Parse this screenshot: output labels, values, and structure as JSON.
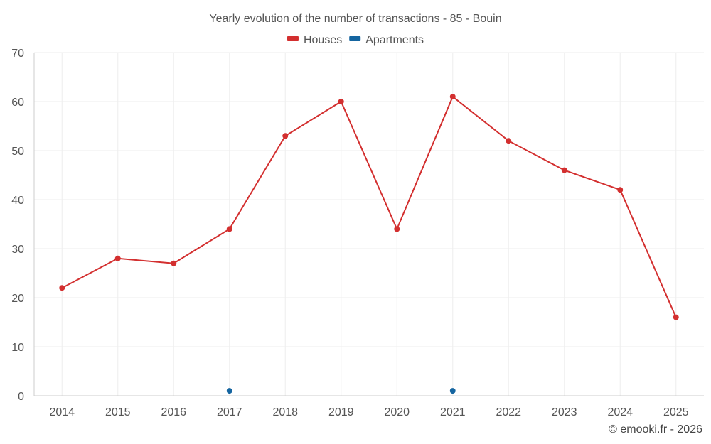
{
  "chart_data": {
    "type": "line",
    "title": "Yearly evolution of the number of transactions - 85 - Bouin",
    "categories": [
      "2014",
      "2015",
      "2016",
      "2017",
      "2018",
      "2019",
      "2020",
      "2021",
      "2022",
      "2023",
      "2024",
      "2025"
    ],
    "ylim": [
      0,
      70
    ],
    "yticks": [
      0,
      10,
      20,
      30,
      40,
      50,
      60,
      70
    ],
    "grid": true,
    "legend_position": "top-center",
    "series": [
      {
        "name": "Houses",
        "color": "#d32f2f",
        "values": [
          22,
          28,
          27,
          34,
          53,
          60,
          34,
          61,
          52,
          46,
          42,
          16
        ]
      },
      {
        "name": "Apartments",
        "color": "#1565a0",
        "values": [
          null,
          null,
          null,
          1,
          null,
          null,
          null,
          1,
          null,
          null,
          null,
          null
        ]
      }
    ]
  },
  "credit": "© emooki.fr - 2026"
}
